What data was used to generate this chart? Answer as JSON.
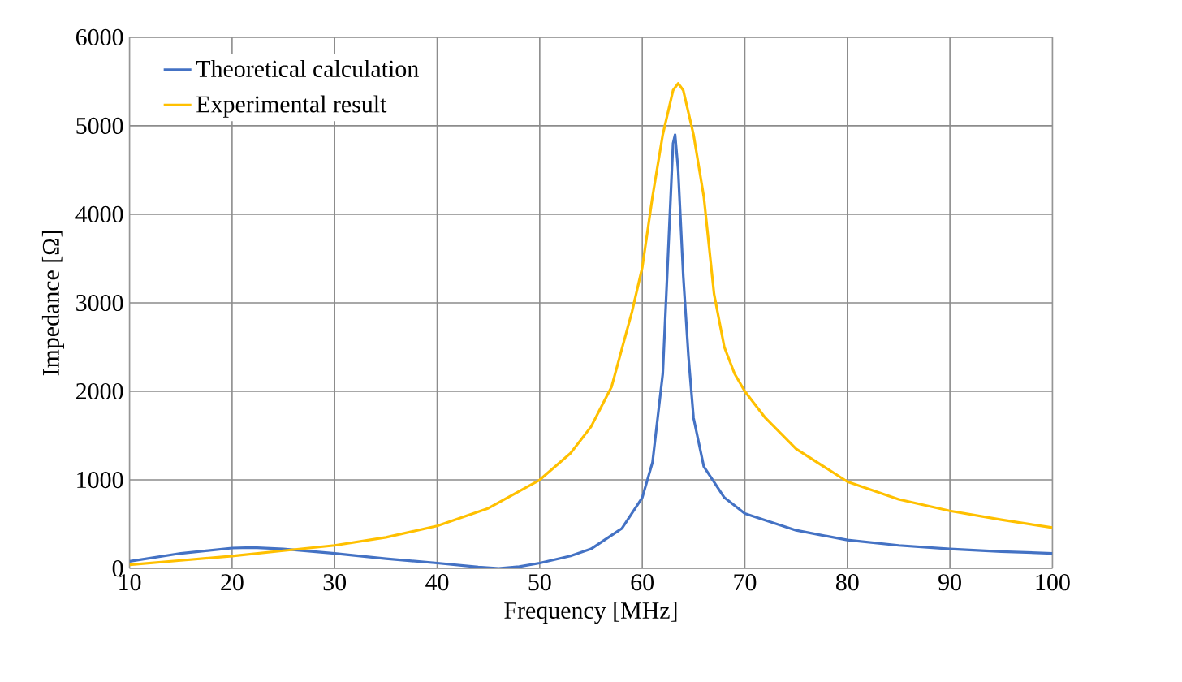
{
  "chart_data": {
    "type": "line",
    "xlabel": "Frequency [MHz]",
    "ylabel": "Impedance [Ω]",
    "xlim": [
      10,
      100
    ],
    "ylim": [
      0,
      6000
    ],
    "xticks": [
      10,
      20,
      30,
      40,
      50,
      60,
      70,
      80,
      90,
      100
    ],
    "yticks": [
      0,
      1000,
      2000,
      3000,
      4000,
      5000,
      6000
    ],
    "grid": true,
    "legend": "top left",
    "marker": "none",
    "line_style": "solid",
    "series": [
      {
        "name": "Theoretical calculation",
        "color": "#4472c4",
        "x": [
          10,
          15,
          20,
          22,
          25,
          30,
          35,
          40,
          44,
          46,
          48,
          50,
          53,
          55,
          58,
          60,
          61,
          62,
          62.5,
          63,
          63.2,
          63.5,
          64,
          64.5,
          65,
          66,
          68,
          70,
          75,
          80,
          85,
          90,
          95,
          100
        ],
        "values": [
          80,
          170,
          230,
          235,
          220,
          170,
          110,
          60,
          15,
          0,
          20,
          60,
          140,
          220,
          450,
          800,
          1200,
          2200,
          3500,
          4800,
          4900,
          4500,
          3300,
          2400,
          1700,
          1150,
          800,
          620,
          430,
          320,
          260,
          220,
          190,
          170
        ]
      },
      {
        "name": "Experimental result",
        "color": "#ffc000",
        "x": [
          10,
          15,
          20,
          25,
          30,
          35,
          40,
          45,
          50,
          53,
          55,
          57,
          59,
          60,
          61,
          62,
          63,
          63.5,
          64,
          65,
          66,
          67,
          68,
          69,
          70,
          72,
          75,
          80,
          85,
          90,
          95,
          100
        ],
        "values": [
          40,
          90,
          140,
          200,
          260,
          350,
          480,
          680,
          1000,
          1300,
          1600,
          2050,
          2900,
          3400,
          4200,
          4900,
          5400,
          5480,
          5400,
          4900,
          4200,
          3100,
          2500,
          2200,
          2000,
          1700,
          1350,
          980,
          780,
          650,
          550,
          460
        ]
      }
    ]
  }
}
